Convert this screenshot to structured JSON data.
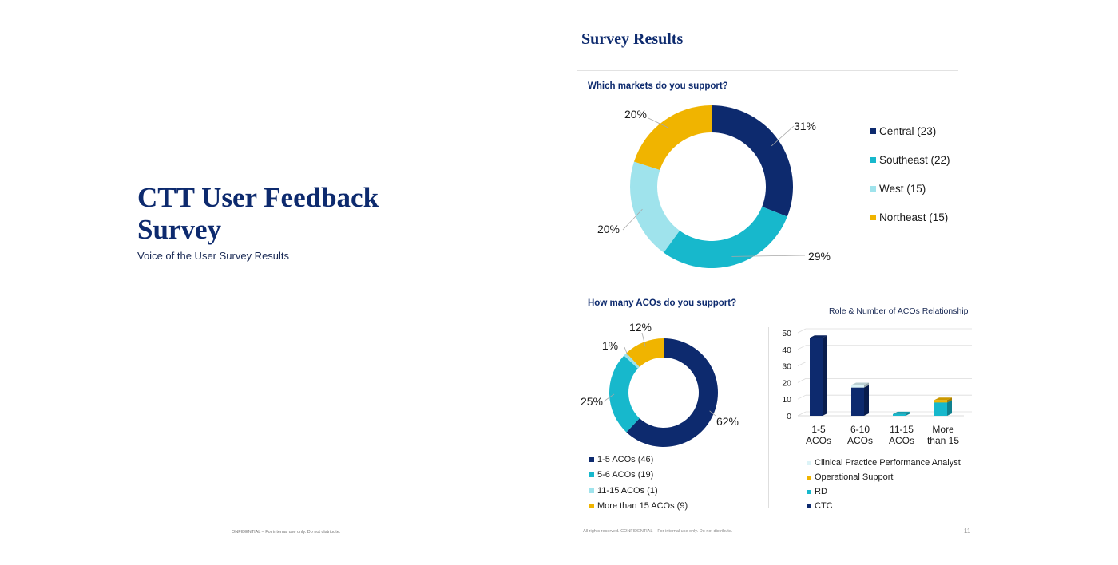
{
  "slide": {
    "title": "CTT User Feedback Survey",
    "subtitle": "Voice of the User Survey Results",
    "confidential_left": "ONFIDENTIAL – For internal use only. Do not distribute."
  },
  "panel": {
    "title": "Survey Results",
    "footer": "All rights reserved. CONFIDENTIAL – For internal use only. Do not distribute.",
    "page_number": "11"
  },
  "colors": {
    "navy": "#0d2a6e",
    "teal": "#17b8cc",
    "light_teal": "#9fe3ec",
    "gold": "#f0b400",
    "very_light": "#dcf3f7"
  },
  "chart_data": [
    {
      "type": "pie",
      "title": "Which markets do you support?",
      "categories": [
        "Central (23)",
        "Southeast (22)",
        "West (15)",
        "Northeast (15)"
      ],
      "values": [
        31,
        29,
        20,
        20
      ],
      "labels": [
        "31%",
        "29%",
        "20%",
        "20%"
      ],
      "colors": [
        "#0d2a6e",
        "#17b8cc",
        "#9fe3ec",
        "#f0b400"
      ],
      "legend": "right"
    },
    {
      "type": "pie",
      "title": "How many ACOs do you support?",
      "categories": [
        "1-5 ACOs (46)",
        "5-6 ACOs (19)",
        "11-15 ACOs (1)",
        "More than 15 ACOs  (9)"
      ],
      "values": [
        62,
        25,
        1,
        12
      ],
      "labels": [
        "62%",
        "25%",
        "1%",
        "12%"
      ],
      "colors": [
        "#0d2a6e",
        "#17b8cc",
        "#9fe3ec",
        "#f0b400"
      ],
      "legend": "bottom"
    },
    {
      "type": "bar",
      "title": "Role & Number of ACOs Relationship",
      "categories": [
        "1-5 ACOs",
        "6-10 ACOs",
        "11-15 ACOs",
        "More than 15"
      ],
      "category_lines": [
        [
          "1-5",
          "ACOs"
        ],
        [
          "6-10",
          "ACOs"
        ],
        [
          "11-15",
          "ACOs"
        ],
        [
          "More",
          "than 15"
        ]
      ],
      "stacked": true,
      "ylim": [
        0,
        50
      ],
      "yticks": [
        0,
        10,
        20,
        30,
        40,
        50
      ],
      "series": [
        {
          "name": "CTC",
          "values": [
            47,
            17,
            0,
            0
          ],
          "color": "#0d2a6e"
        },
        {
          "name": "RD",
          "values": [
            0,
            0,
            1,
            8
          ],
          "color": "#17b8cc"
        },
        {
          "name": "Operational Support",
          "values": [
            0,
            0,
            0,
            1.5
          ],
          "color": "#f0b400"
        },
        {
          "name": "Clinical Practice Performance Analyst",
          "values": [
            0,
            1.5,
            0,
            0
          ],
          "color": "#dcf3f7"
        }
      ],
      "legend_order": [
        "Clinical Practice Performance Analyst",
        "Operational Support",
        "RD",
        "CTC"
      ],
      "legend": "bottom",
      "grid": true
    }
  ]
}
